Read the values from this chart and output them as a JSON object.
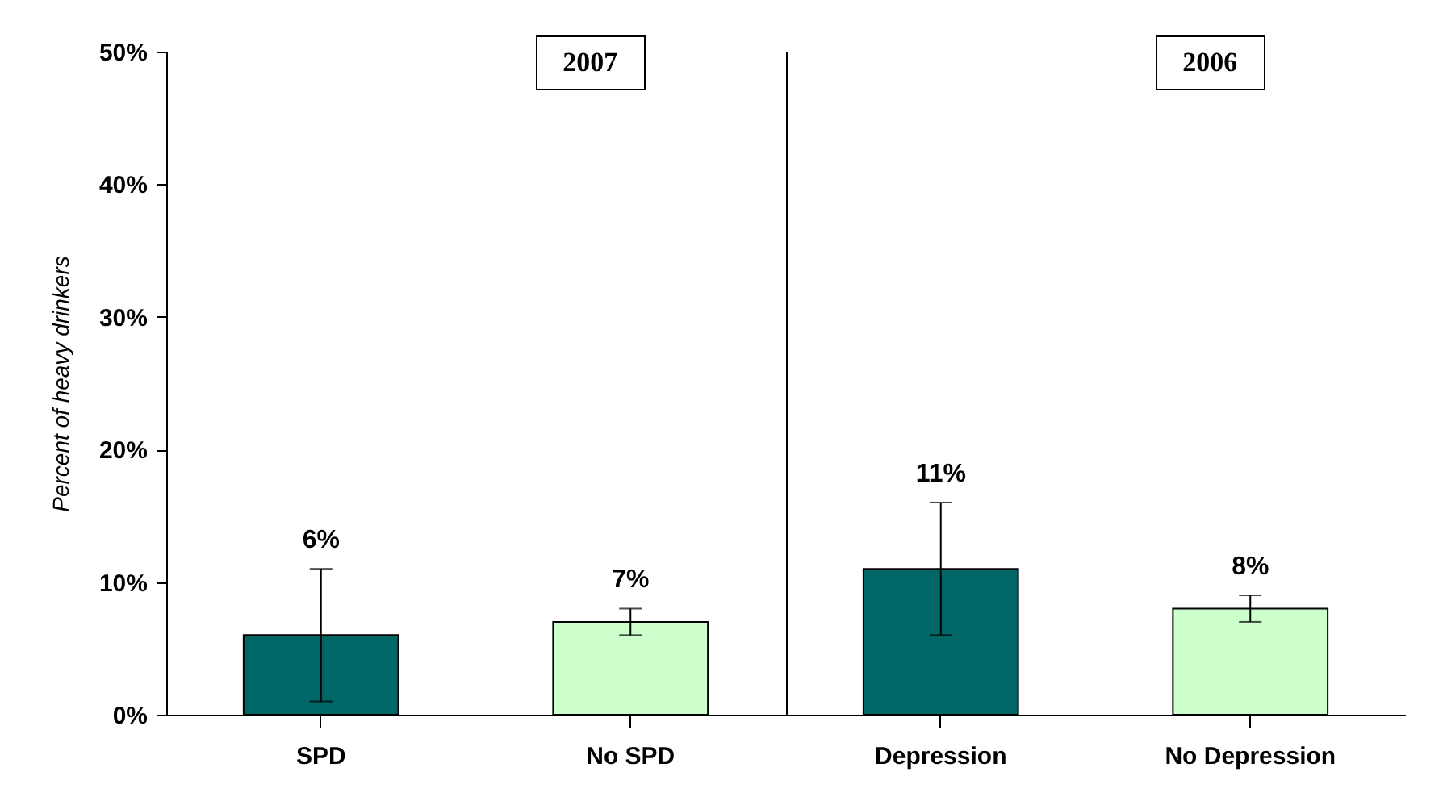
{
  "chart_data": [
    {
      "type": "bar",
      "ylabel": "Percent of heavy drinkers",
      "categories": [
        "SPD",
        "No SPD"
      ],
      "values": [
        6,
        7
      ],
      "colors": [
        "#006666",
        "#ccffcc"
      ],
      "errors": [
        [
          1,
          11
        ],
        [
          6,
          8
        ]
      ],
      "value_labels": [
        "6%",
        "7%"
      ],
      "ylim": [
        0,
        50
      ],
      "yticks": [
        {
          "value": 0,
          "label": "0%"
        },
        {
          "value": 10,
          "label": "10%"
        },
        {
          "value": 20,
          "label": "20%"
        },
        {
          "value": 30,
          "label": "30%"
        },
        {
          "value": 40,
          "label": "40%"
        },
        {
          "value": 50,
          "label": "50%"
        }
      ],
      "annotations": [
        "2007"
      ]
    },
    {
      "type": "bar",
      "categories": [
        "Depression",
        "No Depression"
      ],
      "values": [
        11,
        8
      ],
      "colors": [
        "#006666",
        "#ccffcc"
      ],
      "errors": [
        [
          6,
          16
        ],
        [
          7,
          9
        ]
      ],
      "value_labels": [
        "11%",
        "8%"
      ],
      "ylim": [
        0,
        50
      ],
      "tick_labels": "x",
      "annotations": [
        "2006"
      ]
    }
  ]
}
